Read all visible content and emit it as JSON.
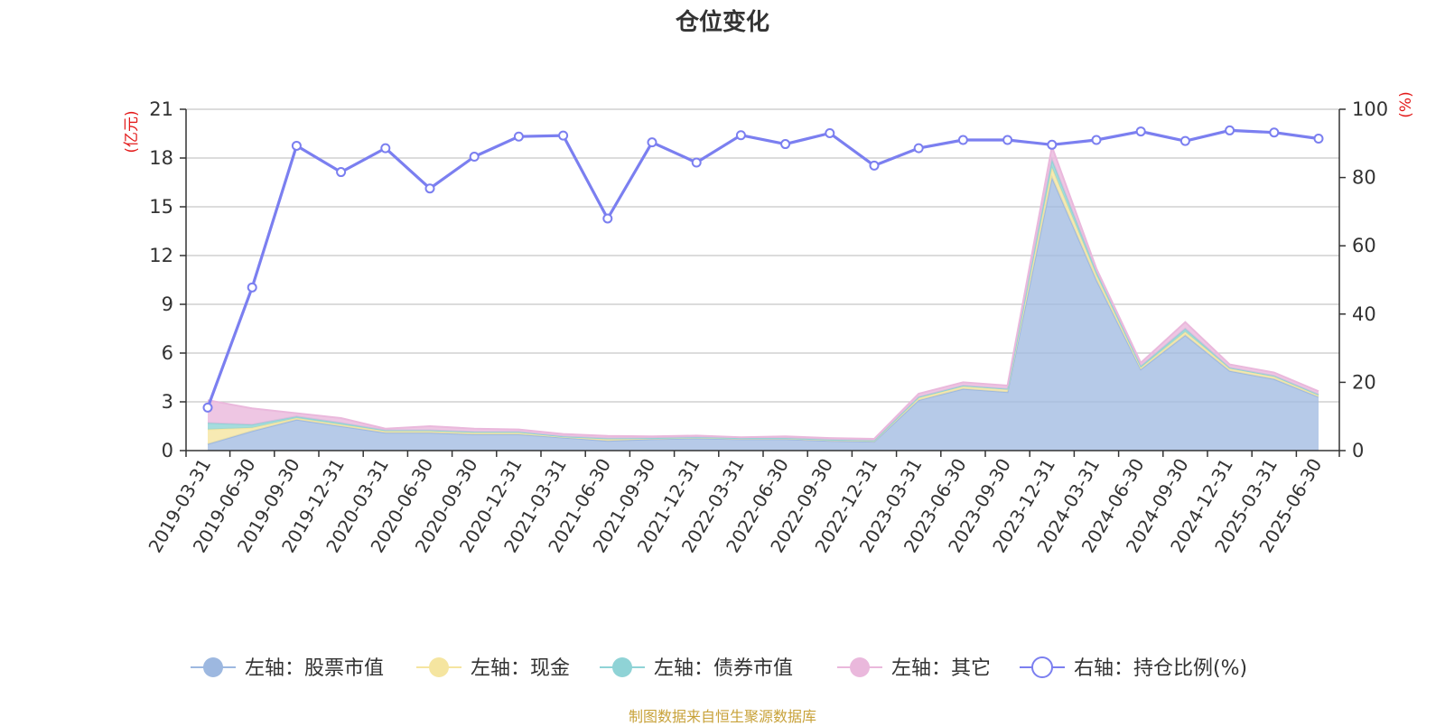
{
  "title": "仓位变化",
  "source": "制图数据来自恒生聚源数据库",
  "chart_data": {
    "type": "area",
    "title": "仓位变化",
    "x": [
      "2019-03-31",
      "2019-06-30",
      "2019-09-30",
      "2019-12-31",
      "2020-03-31",
      "2020-06-30",
      "2020-09-30",
      "2020-12-31",
      "2021-03-31",
      "2021-06-30",
      "2021-09-30",
      "2021-12-31",
      "2022-03-31",
      "2022-06-30",
      "2022-09-30",
      "2022-12-31",
      "2023-03-31",
      "2023-06-30",
      "2023-09-30",
      "2023-12-31",
      "2024-03-31",
      "2024-06-30",
      "2024-09-30",
      "2024-12-31",
      "2025-03-31",
      "2025-06-30"
    ],
    "left_axis": {
      "unit": "(亿元)",
      "ylim": [
        0,
        21
      ],
      "ticks": [
        0,
        3,
        6,
        9,
        12,
        15,
        18,
        21
      ]
    },
    "right_axis": {
      "unit": "(%)",
      "ylim": [
        0,
        100
      ],
      "ticks": [
        0,
        20,
        40,
        60,
        80,
        100
      ]
    },
    "series": [
      {
        "name": "左轴：股票市值",
        "axis": "left",
        "type": "area",
        "color": "#9db8e0",
        "values": [
          0.4,
          1.2,
          1.9,
          1.5,
          1.1,
          1.1,
          1.0,
          1.0,
          0.8,
          0.6,
          0.7,
          0.75,
          0.7,
          0.7,
          0.6,
          0.55,
          3.1,
          3.8,
          3.6,
          16.8,
          10.5,
          5.0,
          7.1,
          4.9,
          4.4,
          3.3
        ]
      },
      {
        "name": "左轴：现金",
        "axis": "left",
        "type": "area",
        "color": "#f5e5a0",
        "values": [
          0.9,
          0.2,
          0.1,
          0.1,
          0.1,
          0.1,
          0.1,
          0.1,
          0.05,
          0.1,
          0.05,
          0.05,
          0.05,
          0.05,
          0.05,
          0.05,
          0.15,
          0.15,
          0.15,
          0.6,
          0.3,
          0.1,
          0.2,
          0.15,
          0.15,
          0.1
        ]
      },
      {
        "name": "左轴：债券市值",
        "axis": "left",
        "type": "area",
        "color": "#8fd3d6",
        "values": [
          0.4,
          0.2,
          0.1,
          0.1,
          0.05,
          0.05,
          0.05,
          0.05,
          0.02,
          0.05,
          0.02,
          0.02,
          0.02,
          0.02,
          0.02,
          0.02,
          0.05,
          0.05,
          0.05,
          0.5,
          0.2,
          0.1,
          0.2,
          0.05,
          0.05,
          0.05
        ]
      },
      {
        "name": "左轴：其它",
        "axis": "left",
        "type": "area",
        "color": "#eab8dc",
        "values": [
          1.4,
          1.0,
          0.2,
          0.3,
          0.1,
          0.25,
          0.2,
          0.15,
          0.15,
          0.15,
          0.1,
          0.1,
          0.05,
          0.1,
          0.1,
          0.1,
          0.2,
          0.2,
          0.2,
          0.8,
          0.2,
          0.2,
          0.4,
          0.2,
          0.2,
          0.2
        ]
      },
      {
        "name": "右轴：持仓比例(%)",
        "axis": "right",
        "type": "line",
        "color": "#7b7ff0",
        "values": [
          12.6,
          47.8,
          89.3,
          81.6,
          88.6,
          76.8,
          86.1,
          92.0,
          92.3,
          68.0,
          90.3,
          84.4,
          92.4,
          89.8,
          93.0,
          83.5,
          88.6,
          91.0,
          91.0,
          89.6,
          91.0,
          93.5,
          90.7,
          93.8,
          93.2,
          91.4
        ]
      }
    ],
    "legend": {
      "position": "bottom"
    },
    "grid": true
  }
}
